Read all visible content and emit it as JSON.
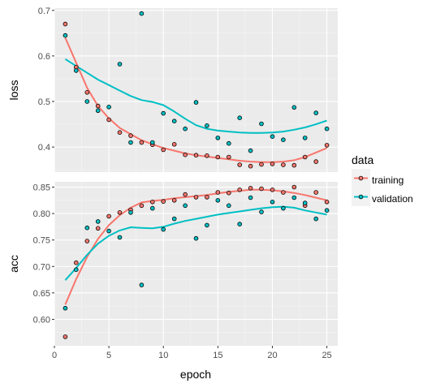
{
  "chart_data": {
    "type": "scatter",
    "xlabel": "epoch",
    "x_ticks": [
      0,
      5,
      10,
      15,
      20,
      25
    ],
    "xlim": [
      0,
      26
    ],
    "legend": {
      "title": "data",
      "placement": "right",
      "entries": [
        "training",
        "validation"
      ]
    },
    "colors": {
      "training": "#F8766D",
      "validation": "#00BFC4"
    },
    "grid": true,
    "smoothing_curves": true,
    "x": [
      1,
      2,
      3,
      4,
      5,
      6,
      7,
      8,
      9,
      10,
      11,
      12,
      13,
      14,
      15,
      16,
      17,
      18,
      19,
      20,
      21,
      22,
      23,
      24,
      25
    ],
    "panels": [
      {
        "ylabel": "loss",
        "ylim": [
          0.345,
          0.705
        ],
        "y_ticks": [
          0.4,
          0.5,
          0.6,
          0.7
        ],
        "y_tick_labels": [
          "0.4",
          "0.5",
          "0.6",
          "0.7"
        ],
        "series": [
          {
            "name": "training",
            "points": [
              0.67,
              0.575,
              0.52,
              0.49,
              0.46,
              0.432,
              0.425,
              0.41,
              0.405,
              0.394,
              0.406,
              0.383,
              0.382,
              0.381,
              0.378,
              0.378,
              0.361,
              0.358,
              0.362,
              0.363,
              0.361,
              0.36,
              0.378,
              0.368,
              0.404
            ],
            "smooth": [
              0.64,
              0.585,
              0.53,
              0.49,
              0.463,
              0.442,
              0.428,
              0.415,
              0.406,
              0.398,
              0.392,
              0.386,
              0.382,
              0.379,
              0.376,
              0.373,
              0.37,
              0.368,
              0.367,
              0.367,
              0.368,
              0.371,
              0.378,
              0.388,
              0.398
            ]
          },
          {
            "name": "validation",
            "points": [
              0.645,
              0.568,
              0.5,
              0.48,
              0.488,
              0.582,
              0.41,
              0.693,
              0.41,
              0.474,
              0.457,
              0.44,
              0.498,
              0.447,
              0.42,
              0.408,
              0.464,
              0.392,
              0.451,
              0.423,
              0.416,
              0.487,
              0.42,
              0.475,
              0.44
            ],
            "smooth": [
              0.593,
              0.578,
              0.563,
              0.548,
              0.536,
              0.524,
              0.512,
              0.503,
              0.499,
              0.492,
              0.478,
              0.462,
              0.448,
              0.44,
              0.436,
              0.434,
              0.432,
              0.431,
              0.431,
              0.432,
              0.434,
              0.438,
              0.443,
              0.45,
              0.458
            ]
          }
        ]
      },
      {
        "ylabel": "acc",
        "ylim": [
          0.55,
          0.86
        ],
        "y_ticks": [
          0.6,
          0.65,
          0.7,
          0.75,
          0.8,
          0.85
        ],
        "y_tick_labels": [
          "0.60",
          "0.65",
          "0.70",
          "0.75",
          "0.80",
          "0.85"
        ],
        "series": [
          {
            "name": "training",
            "points": [
              0.567,
              0.707,
              0.748,
              0.772,
              0.795,
              0.802,
              0.807,
              0.815,
              0.822,
              0.823,
              0.825,
              0.836,
              0.831,
              0.831,
              0.84,
              0.839,
              0.845,
              0.848,
              0.847,
              0.845,
              0.84,
              0.85,
              0.815,
              0.84,
              0.822
            ],
            "smooth": [
              0.628,
              0.676,
              0.718,
              0.752,
              0.778,
              0.797,
              0.811,
              0.821,
              0.824,
              0.826,
              0.829,
              0.831,
              0.833,
              0.835,
              0.838,
              0.841,
              0.843,
              0.845,
              0.845,
              0.844,
              0.842,
              0.839,
              0.835,
              0.83,
              0.825
            ]
          },
          {
            "name": "validation",
            "points": [
              0.621,
              0.694,
              0.773,
              0.785,
              0.767,
              0.755,
              0.802,
              0.665,
              0.81,
              0.77,
              0.79,
              0.815,
              0.753,
              0.778,
              0.825,
              0.815,
              0.78,
              0.83,
              0.803,
              0.822,
              0.81,
              0.83,
              0.82,
              0.79,
              0.806
            ],
            "smooth": [
              0.674,
              0.697,
              0.722,
              0.743,
              0.758,
              0.768,
              0.774,
              0.773,
              0.772,
              0.775,
              0.781,
              0.786,
              0.79,
              0.794,
              0.798,
              0.801,
              0.804,
              0.807,
              0.81,
              0.812,
              0.813,
              0.811,
              0.806,
              0.802,
              0.798
            ]
          }
        ]
      }
    ]
  }
}
